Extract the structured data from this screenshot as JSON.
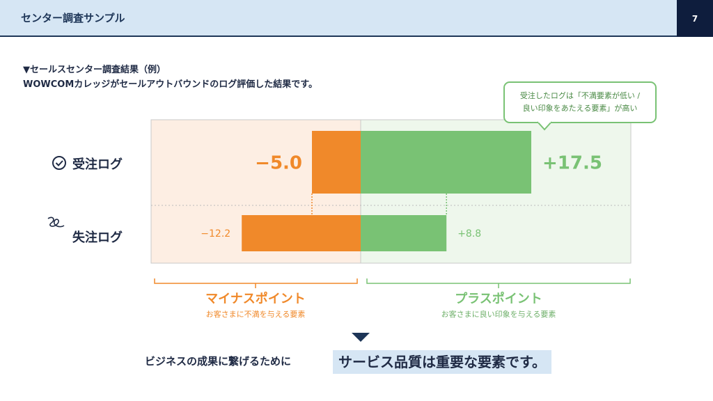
{
  "header": {
    "title": "センター調査サンプル",
    "page_number": "7"
  },
  "caption": {
    "line1": "▼セールスセンター調査結果（例）",
    "line2": "WOWCOMカレッジがセールアウトバウンドのログ評価した結果です。"
  },
  "callout": {
    "line1": "受注したログは「不満要素が低い /",
    "line2": "良い印象をあたえる要素」が高い"
  },
  "rows": [
    {
      "label": "受注ログ",
      "icon": "check-circle-icon"
    },
    {
      "label": "失注ログ",
      "icon": "scribble-icon"
    }
  ],
  "chart_data": {
    "type": "bar",
    "orientation": "horizontal-diverging",
    "categories": [
      "受注ログ",
      "失注ログ"
    ],
    "series": [
      {
        "name": "マイナスポイント",
        "values": [
          -5.0,
          -12.2
        ],
        "labels": [
          "−5.0",
          "−12.2"
        ]
      },
      {
        "name": "プラスポイント",
        "values": [
          17.5,
          8.8
        ],
        "labels": [
          "+17.5",
          "+8.8"
        ]
      }
    ],
    "colors": {
      "negative": "#f0892a",
      "positive": "#79c274",
      "negative_bg": "#fdeee3",
      "positive_bg": "#eef7ec"
    },
    "groups": [
      {
        "label": "マイナスポイント",
        "sub": "お客さまに不満を与える要素"
      },
      {
        "label": "プラスポイント",
        "sub": "お客さまに良い印象を与える要素"
      }
    ]
  },
  "conclusion": {
    "text": "ビジネスの成果に繋げるために",
    "highlight": "サービス品質は重要な要素です。"
  }
}
